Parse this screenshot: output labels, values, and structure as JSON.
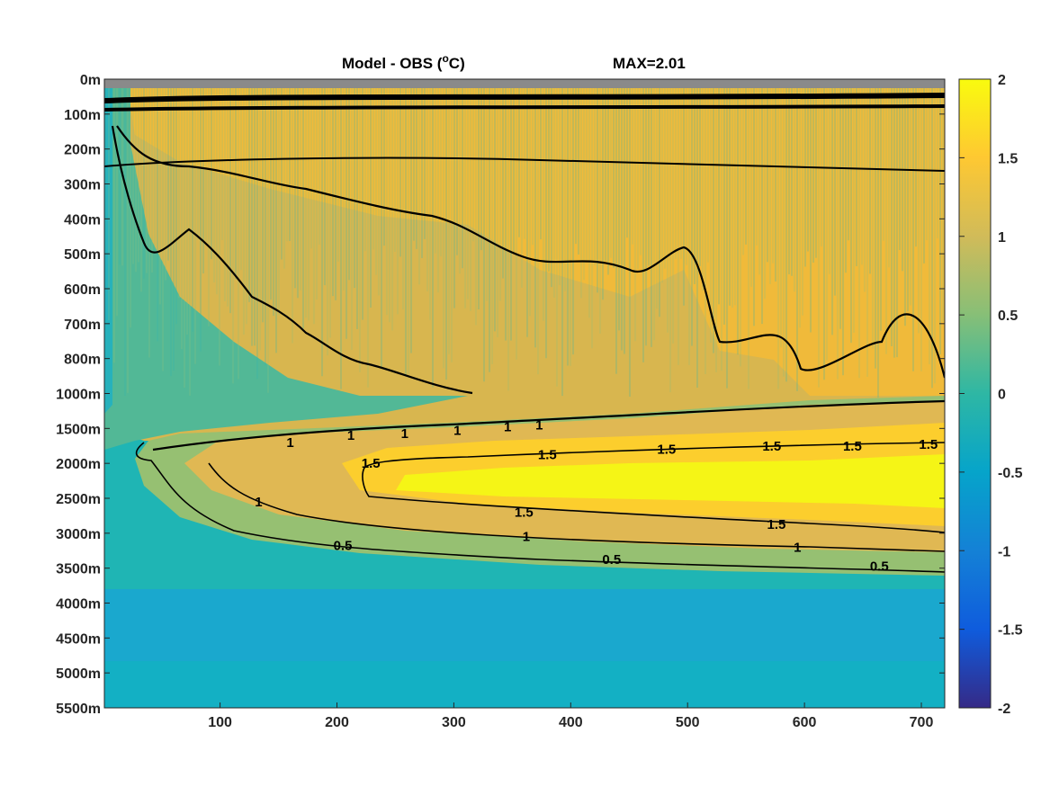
{
  "chart_data": {
    "type": "heatmap",
    "title": "Model - OBS (",
    "title_unit_sup": "o",
    "title_unit_tail": "C)",
    "max_label": "MAX=2.01",
    "x_ticks": [
      "100",
      "200",
      "300",
      "400",
      "500",
      "600",
      "700"
    ],
    "x_tick_values": [
      100,
      200,
      300,
      400,
      500,
      600,
      700
    ],
    "xlim": [
      1,
      720
    ],
    "y_ticks": [
      "0m",
      "100m",
      "200m",
      "300m",
      "400m",
      "500m",
      "600m",
      "700m",
      "800m",
      "1000m",
      "1500m",
      "2000m",
      "2500m",
      "3000m",
      "3500m",
      "4000m",
      "4500m",
      "5000m",
      "5500m"
    ],
    "colorbar": {
      "limits": [
        -2,
        2
      ],
      "ticks": [
        "2",
        "1.5",
        "1",
        "0.5",
        "0",
        "-0.5",
        "-1",
        "-1.5",
        "-2"
      ],
      "tick_values": [
        2,
        1.5,
        1,
        0.5,
        0,
        -0.5,
        -1,
        -1.5,
        -2
      ],
      "colormap": "parula"
    },
    "contour_levels": [
      0.5,
      1,
      1.5
    ],
    "contour_labels": [
      {
        "text": "1",
        "x": 160,
        "depth_index": 10.4
      },
      {
        "text": "1",
        "x": 212,
        "depth_index": 10.2
      },
      {
        "text": "1",
        "x": 258,
        "depth_index": 10.15
      },
      {
        "text": "1",
        "x": 303,
        "depth_index": 10.05
      },
      {
        "text": "1",
        "x": 346,
        "depth_index": 9.95
      },
      {
        "text": "1",
        "x": 373,
        "depth_index": 9.9
      },
      {
        "text": "1.5",
        "x": 229,
        "depth_index": 11.0
      },
      {
        "text": "1.5",
        "x": 380,
        "depth_index": 10.75
      },
      {
        "text": "1.5",
        "x": 482,
        "depth_index": 10.6
      },
      {
        "text": "1.5",
        "x": 572,
        "depth_index": 10.5
      },
      {
        "text": "1.5",
        "x": 641,
        "depth_index": 10.5
      },
      {
        "text": "1.5",
        "x": 706,
        "depth_index": 10.45
      },
      {
        "text": "1.5",
        "x": 360,
        "depth_index": 12.4
      },
      {
        "text": "1.5",
        "x": 576,
        "depth_index": 12.75
      },
      {
        "text": "1",
        "x": 133,
        "depth_index": 12.1
      },
      {
        "text": "1",
        "x": 362,
        "depth_index": 13.1
      },
      {
        "text": "1",
        "x": 594,
        "depth_index": 13.4
      },
      {
        "text": "0.5",
        "x": 205,
        "depth_index": 13.35
      },
      {
        "text": "0.5",
        "x": 435,
        "depth_index": 13.75
      },
      {
        "text": "0.5",
        "x": 664,
        "depth_index": 13.95
      }
    ],
    "grid": false,
    "legend": "none"
  }
}
